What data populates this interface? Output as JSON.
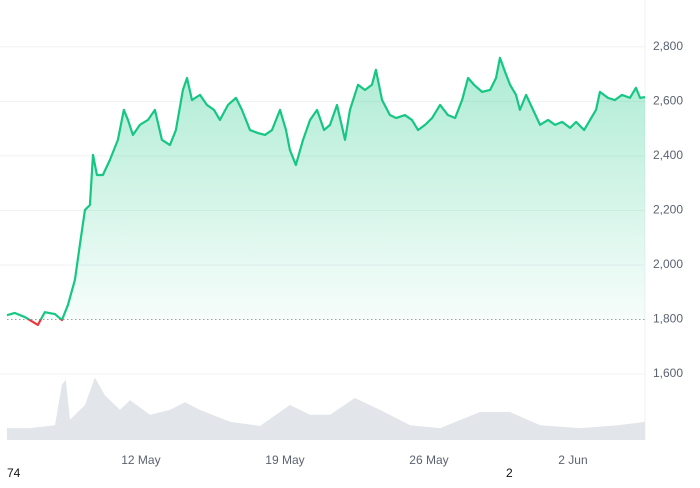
{
  "chart_data": {
    "type": "line",
    "baseline": 1800,
    "up_color": "#16c784",
    "down_color": "#ea3943",
    "volume_color": "#e2e5ea",
    "xlim": [
      5.15,
      36.5
    ],
    "xticks": [
      {
        "value": 12,
        "label": "12 May"
      },
      {
        "value": 19,
        "label": "19 May"
      },
      {
        "value": 26,
        "label": "26 May"
      },
      {
        "value": 33,
        "label": "2 Jun"
      }
    ],
    "ylim": [
      1358,
      2972
    ],
    "yticks": [
      {
        "value": 1600,
        "label": "1,600"
      },
      {
        "value": 1800,
        "label": "1,800"
      },
      {
        "value": 2000,
        "label": "2,000"
      },
      {
        "value": 2200,
        "label": "2,200"
      },
      {
        "value": 2400,
        "label": "2,400"
      },
      {
        "value": 2600,
        "label": "2,600"
      },
      {
        "value": 2800,
        "label": "2,800"
      }
    ],
    "y2lim": [
      0,
      100
    ],
    "grid": true,
    "series": [
      {
        "name": "Price",
        "x": [
          5.49,
          5.87,
          6.36,
          6.75,
          6.99,
          7.33,
          7.82,
          8.16,
          8.45,
          8.79,
          9.03,
          9.28,
          9.52,
          9.67,
          9.86,
          10.15,
          10.49,
          10.88,
          11.17,
          11.37,
          11.61,
          11.95,
          12.34,
          12.68,
          13.02,
          13.41,
          13.7,
          14.04,
          14.24,
          14.48,
          14.87,
          15.21,
          15.55,
          15.84,
          16.23,
          16.62,
          16.91,
          17.3,
          17.69,
          18.03,
          18.37,
          18.76,
          19.05,
          19.24,
          19.53,
          19.88,
          20.22,
          20.56,
          20.9,
          21.19,
          21.53,
          21.92,
          22.16,
          22.55,
          22.89,
          23.23,
          23.42,
          23.72,
          24.1,
          24.4,
          24.83,
          25.17,
          25.47,
          25.81,
          26.15,
          26.54,
          26.92,
          27.27,
          27.61,
          27.9,
          28.19,
          28.58,
          28.97,
          29.26,
          29.45,
          29.7,
          29.94,
          30.23,
          30.42,
          30.72,
          31.06,
          31.4,
          31.79,
          32.13,
          32.47,
          32.86,
          33.15,
          33.54,
          33.83,
          34.12,
          34.31,
          34.7,
          35.04,
          35.38,
          35.77,
          36.06,
          36.26,
          36.5
        ],
        "values": [
          1816,
          1824,
          1809,
          1791,
          1780,
          1827,
          1820,
          1798,
          1853,
          1945,
          2073,
          2202,
          2220,
          2404,
          2330,
          2330,
          2385,
          2459,
          2569,
          2532,
          2477,
          2514,
          2532,
          2569,
          2459,
          2440,
          2495,
          2642,
          2686,
          2605,
          2624,
          2587,
          2569,
          2532,
          2587,
          2613,
          2569,
          2495,
          2484,
          2477,
          2495,
          2569,
          2495,
          2422,
          2367,
          2459,
          2532,
          2569,
          2495,
          2514,
          2587,
          2459,
          2569,
          2661,
          2642,
          2661,
          2716,
          2605,
          2550,
          2539,
          2550,
          2532,
          2495,
          2514,
          2539,
          2587,
          2550,
          2539,
          2605,
          2686,
          2661,
          2635,
          2642,
          2686,
          2760,
          2708,
          2661,
          2624,
          2569,
          2624,
          2569,
          2514,
          2532,
          2514,
          2525,
          2503,
          2525,
          2495,
          2532,
          2569,
          2635,
          2613,
          2605,
          2624,
          2613,
          2650,
          2613,
          2616
        ]
      },
      {
        "name": "Volume",
        "axis": "y2",
        "x": [
          5.49,
          6.6,
          7.82,
          8.16,
          8.35,
          8.55,
          9.28,
          9.76,
          10.25,
          10.98,
          11.47,
          12.44,
          13.41,
          14.14,
          14.87,
          16.33,
          17.79,
          19.24,
          20.22,
          21.19,
          22.4,
          23.62,
          25.08,
          26.54,
          28.48,
          29.94,
          31.4,
          33.34,
          35.18,
          36.5
        ],
        "values": [
          17,
          17,
          21,
          79,
          86,
          29,
          50,
          89,
          64,
          43,
          57,
          36,
          43,
          54,
          43,
          26,
          20,
          50,
          36,
          36,
          60,
          43,
          21,
          17,
          40,
          40,
          21,
          17,
          21,
          26
        ]
      }
    ],
    "stray_texts": [
      "74",
      "2"
    ]
  }
}
